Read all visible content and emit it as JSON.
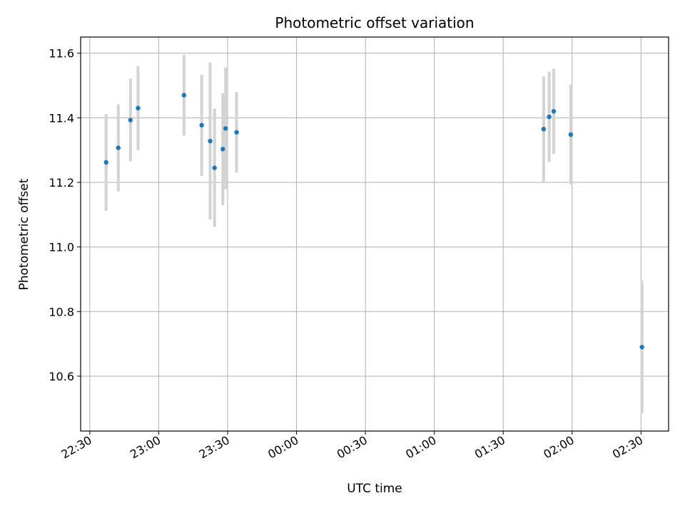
{
  "chart_data": {
    "type": "scatter",
    "title": "Photometric offset variation",
    "xlabel": "UTC time",
    "ylabel": "Photometric offset",
    "xlim": [
      "22:26",
      "02:42"
    ],
    "ylim": [
      10.43,
      11.65
    ],
    "x_ticks": [
      "22:30",
      "23:00",
      "23:30",
      "00:00",
      "00:30",
      "01:00",
      "01:30",
      "02:00",
      "02:30"
    ],
    "y_ticks": [
      "10.6",
      "10.8",
      "11.0",
      "11.2",
      "11.4",
      "11.6"
    ],
    "grid": true,
    "marker_color": "#1f77b4",
    "errorbar_color": "#d3d3d3",
    "points": [
      {
        "x": "22:37:06",
        "y": 11.262,
        "err": 0.15
      },
      {
        "x": "22:42:24",
        "y": 11.307,
        "err": 0.135
      },
      {
        "x": "22:47:42",
        "y": 11.393,
        "err": 0.128
      },
      {
        "x": "22:51:00",
        "y": 11.43,
        "err": 0.13
      },
      {
        "x": "23:11:00",
        "y": 11.47,
        "err": 0.125
      },
      {
        "x": "23:18:42",
        "y": 11.377,
        "err": 0.157
      },
      {
        "x": "23:22:24",
        "y": 11.328,
        "err": 0.243
      },
      {
        "x": "23:24:18",
        "y": 11.245,
        "err": 0.183
      },
      {
        "x": "23:27:54",
        "y": 11.303,
        "err": 0.173
      },
      {
        "x": "23:29:06",
        "y": 11.367,
        "err": 0.188
      },
      {
        "x": "23:33:54",
        "y": 11.355,
        "err": 0.125
      },
      {
        "x": "01:47:36",
        "y": 11.365,
        "err": 0.163
      },
      {
        "x": "01:50:00",
        "y": 11.403,
        "err": 0.14
      },
      {
        "x": "01:52:00",
        "y": 11.42,
        "err": 0.132
      },
      {
        "x": "01:59:24",
        "y": 11.348,
        "err": 0.155
      },
      {
        "x": "02:30:24",
        "y": 10.69,
        "err": 0.205
      }
    ]
  }
}
